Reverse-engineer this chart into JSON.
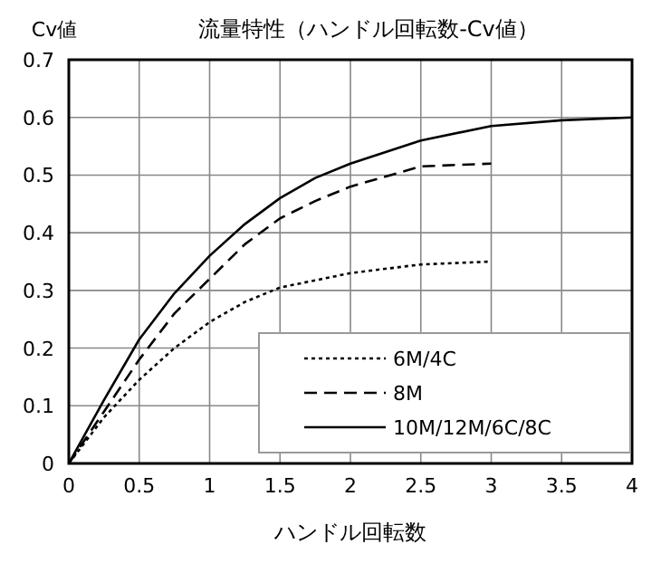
{
  "chart_data": {
    "type": "line",
    "title": "流量特性（ハンドル回転数-Cv値）",
    "xlabel": "ハンドル回転数",
    "ylabel": "Cv値",
    "xlim": [
      0,
      4
    ],
    "xticks": [
      0,
      0.5,
      1,
      1.5,
      2,
      2.5,
      3,
      3.5,
      4
    ],
    "ylim": [
      0,
      0.7
    ],
    "yticks": [
      0,
      0.1,
      0.2,
      0.3,
      0.4,
      0.5,
      0.6,
      0.7
    ],
    "grid": true,
    "legend": "bottom right",
    "marker": "none",
    "series": [
      {
        "name": "6M/4C",
        "color": "#000000",
        "line_style": "dotted",
        "x": [
          0,
          0.25,
          0.5,
          0.75,
          1,
          1.25,
          1.5,
          2,
          2.5,
          3
        ],
        "values": [
          0,
          0.08,
          0.145,
          0.2,
          0.245,
          0.28,
          0.305,
          0.33,
          0.345,
          0.35
        ]
      },
      {
        "name": "8M",
        "color": "#000000",
        "line_style": "dashed",
        "x": [
          0,
          0.25,
          0.5,
          0.75,
          1,
          1.25,
          1.5,
          1.75,
          2,
          2.5,
          3
        ],
        "values": [
          0,
          0.09,
          0.18,
          0.26,
          0.32,
          0.38,
          0.425,
          0.455,
          0.48,
          0.515,
          0.52
        ]
      },
      {
        "name": "10M/12M/6C/8C",
        "color": "#000000",
        "line_style": "solid",
        "x": [
          0,
          0.25,
          0.5,
          0.75,
          1,
          1.25,
          1.5,
          1.75,
          2,
          2.5,
          3,
          3.5,
          4
        ],
        "values": [
          0,
          0.11,
          0.215,
          0.295,
          0.36,
          0.415,
          0.46,
          0.495,
          0.52,
          0.56,
          0.585,
          0.595,
          0.6
        ]
      }
    ]
  }
}
